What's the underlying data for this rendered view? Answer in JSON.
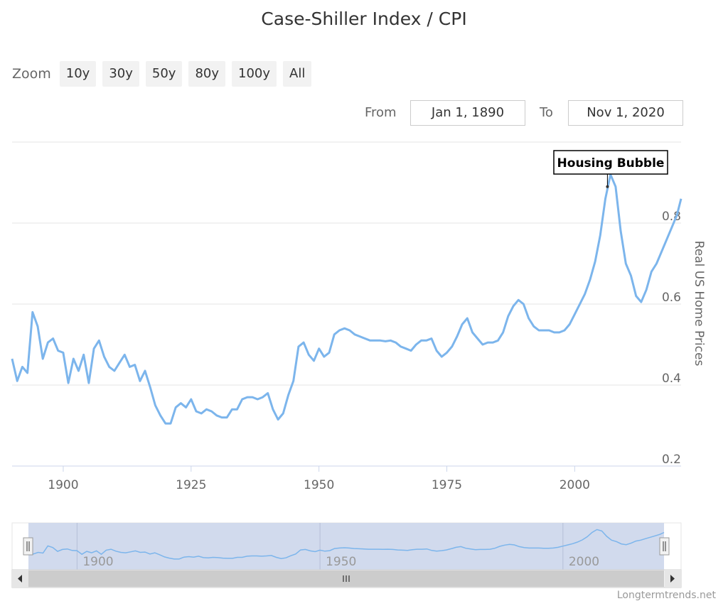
{
  "title": "Case-Shiller Index / CPI",
  "zoom": {
    "label": "Zoom",
    "buttons": [
      "10y",
      "30y",
      "50y",
      "80y",
      "100y",
      "All"
    ]
  },
  "range": {
    "from_label": "From",
    "from_value": "Jan 1, 1890",
    "to_label": "To",
    "to_value": "Nov 1, 2020"
  },
  "credit": "Longtermtrends.net",
  "colors": {
    "series": "#7cb5ec",
    "navigator_mask": "#ccd6eb",
    "grid": "#e6e6e6"
  },
  "chart_data": {
    "type": "line",
    "title": "Case-Shiller Index / CPI",
    "ylabel": "Real US Home Prices",
    "xlabel": "",
    "xlim": [
      1890,
      2020.8
    ],
    "ylim": [
      0.2,
      1.0
    ],
    "y_ticks": [
      "0.2",
      "0.4",
      "0.6",
      "0.8"
    ],
    "x_ticks": [
      "1900",
      "1925",
      "1950",
      "1975",
      "2000"
    ],
    "navigator_ticks": [
      "1900",
      "1950",
      "2000"
    ],
    "grid": true,
    "annotation": {
      "text": "Housing Bubble",
      "x": 2006.4,
      "y": 0.89
    },
    "series": [
      {
        "name": "",
        "x": [
          1890,
          1891,
          1892,
          1893,
          1894,
          1895,
          1896,
          1897,
          1898,
          1899,
          1900,
          1901,
          1902,
          1903,
          1904,
          1905,
          1906,
          1907,
          1908,
          1909,
          1910,
          1911,
          1912,
          1913,
          1914,
          1915,
          1916,
          1917,
          1918,
          1919,
          1920,
          1921,
          1922,
          1923,
          1924,
          1925,
          1926,
          1927,
          1928,
          1929,
          1930,
          1931,
          1932,
          1933,
          1934,
          1935,
          1936,
          1937,
          1938,
          1939,
          1940,
          1941,
          1942,
          1943,
          1944,
          1945,
          1946,
          1947,
          1948,
          1949,
          1950,
          1951,
          1952,
          1953,
          1954,
          1955,
          1956,
          1957,
          1958,
          1959,
          1960,
          1961,
          1962,
          1963,
          1964,
          1965,
          1966,
          1967,
          1968,
          1969,
          1970,
          1971,
          1972,
          1973,
          1974,
          1975,
          1976,
          1977,
          1978,
          1979,
          1980,
          1981,
          1982,
          1983,
          1984,
          1985,
          1986,
          1987,
          1988,
          1989,
          1990,
          1991,
          1992,
          1993,
          1994,
          1995,
          1996,
          1997,
          1998,
          1999,
          2000,
          2001,
          2002,
          2003,
          2004,
          2005,
          2006,
          2007,
          2008,
          2009,
          2010,
          2011,
          2012,
          2013,
          2014,
          2015,
          2016,
          2017,
          2018,
          2019,
          2020,
          2020.8
        ],
        "values": [
          0.465,
          0.41,
          0.445,
          0.43,
          0.58,
          0.545,
          0.465,
          0.505,
          0.515,
          0.485,
          0.48,
          0.405,
          0.465,
          0.435,
          0.475,
          0.405,
          0.49,
          0.51,
          0.47,
          0.445,
          0.435,
          0.455,
          0.475,
          0.445,
          0.45,
          0.41,
          0.435,
          0.395,
          0.35,
          0.325,
          0.305,
          0.305,
          0.345,
          0.355,
          0.345,
          0.365,
          0.335,
          0.33,
          0.34,
          0.335,
          0.325,
          0.32,
          0.32,
          0.34,
          0.34,
          0.365,
          0.37,
          0.37,
          0.365,
          0.37,
          0.38,
          0.34,
          0.315,
          0.33,
          0.375,
          0.41,
          0.495,
          0.505,
          0.475,
          0.46,
          0.49,
          0.47,
          0.48,
          0.525,
          0.535,
          0.54,
          0.535,
          0.525,
          0.52,
          0.515,
          0.51,
          0.51,
          0.51,
          0.508,
          0.51,
          0.505,
          0.495,
          0.49,
          0.485,
          0.5,
          0.51,
          0.51,
          0.515,
          0.485,
          0.47,
          0.48,
          0.495,
          0.52,
          0.55,
          0.565,
          0.53,
          0.515,
          0.5,
          0.505,
          0.505,
          0.51,
          0.53,
          0.57,
          0.595,
          0.61,
          0.6,
          0.565,
          0.545,
          0.535,
          0.535,
          0.535,
          0.53,
          0.53,
          0.535,
          0.55,
          0.575,
          0.6,
          0.625,
          0.66,
          0.705,
          0.77,
          0.86,
          0.92,
          0.89,
          0.78,
          0.7,
          0.67,
          0.62,
          0.605,
          0.635,
          0.68,
          0.7,
          0.73,
          0.76,
          0.79,
          0.82,
          0.86
        ]
      }
    ]
  }
}
